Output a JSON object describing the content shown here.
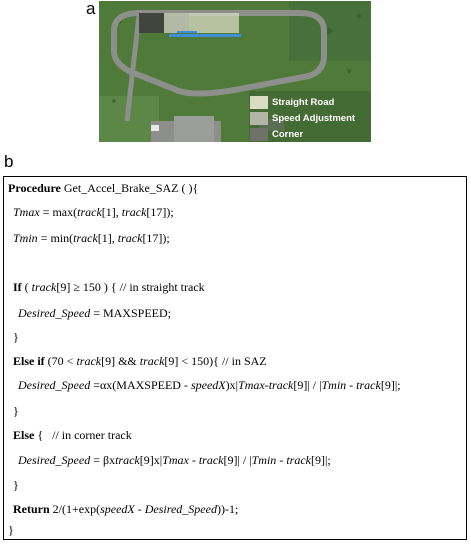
{
  "figure": {
    "label_a": "a",
    "label_b": "b",
    "legend": [
      {
        "text": "Straight Road",
        "color": "#d9dcc3"
      },
      {
        "text": "Speed Adjustment",
        "color": "#b3b6a6"
      },
      {
        "text": "Corner",
        "color": "#6f7268"
      }
    ],
    "colors": {
      "grass": "#4f7a3a",
      "road": "#8c8f8a",
      "highlight_blue": "#3f8fd6"
    }
  },
  "code": {
    "l1": {
      "kw": "Procedure",
      "rest": " Get_Accel_Brake_SAZ ( ){"
    },
    "l2": {
      "v": "Tmax",
      "eq": " = max(",
      "a": "track",
      "i1": "[1], ",
      "b": "track",
      "i2": "[17]);"
    },
    "l3": {
      "v": "Tmin",
      "eq": " = min(",
      "a": "track",
      "i1": "[1], ",
      "b": "track",
      "i2": "[17]);"
    },
    "l4": {
      "kw": "If",
      "pre": " ( ",
      "t": "track",
      "rest": "[9] ≥ 150 ) { // in straight track"
    },
    "l5": {
      "v": "Desired_Speed",
      "rest": " = MAXSPEED;"
    },
    "l6": {
      "text": "}"
    },
    "l7": {
      "kw": "Else if",
      "p1": " (70 < ",
      "t1": "track",
      "p2": "[9] && ",
      "t2": "track",
      "p3": "[9] < 150){ // in SAZ"
    },
    "l8": {
      "v": "Desired_Speed",
      "p1": " =",
      "g": "α",
      "p2": "x(MAXSPEED - ",
      "s": "speedX",
      "p3": ")x|",
      "tm": "Tmax",
      "p4": "-",
      "t1": "track",
      "p5": "[9]| / |",
      "tn": "Tmin",
      "p6": " - ",
      "t2": "track",
      "p7": "[9]|;"
    },
    "l9": {
      "text": "}"
    },
    "l10": {
      "kw": "Else",
      "rest": " {   // in corner track"
    },
    "l11": {
      "v": "Desired_Speed",
      "p1": " = ",
      "g": "β",
      "p2": "x",
      "t0": "track",
      "p3": "[9]x|",
      "tm": "Tmax",
      "p4": " - ",
      "t1": "track",
      "p5": "[9]| / |",
      "tn": "Tmin",
      "p6": " - ",
      "t2": "track",
      "p7": "[9]|;"
    },
    "l12": {
      "text": "}"
    },
    "l13": {
      "kw": "Return",
      "p1": " 2/(1+exp(",
      "s": "speedX",
      "p2": " - ",
      "d": "Desired_Speed",
      "p3": "))-1;"
    },
    "l14": {
      "text": "}"
    }
  }
}
